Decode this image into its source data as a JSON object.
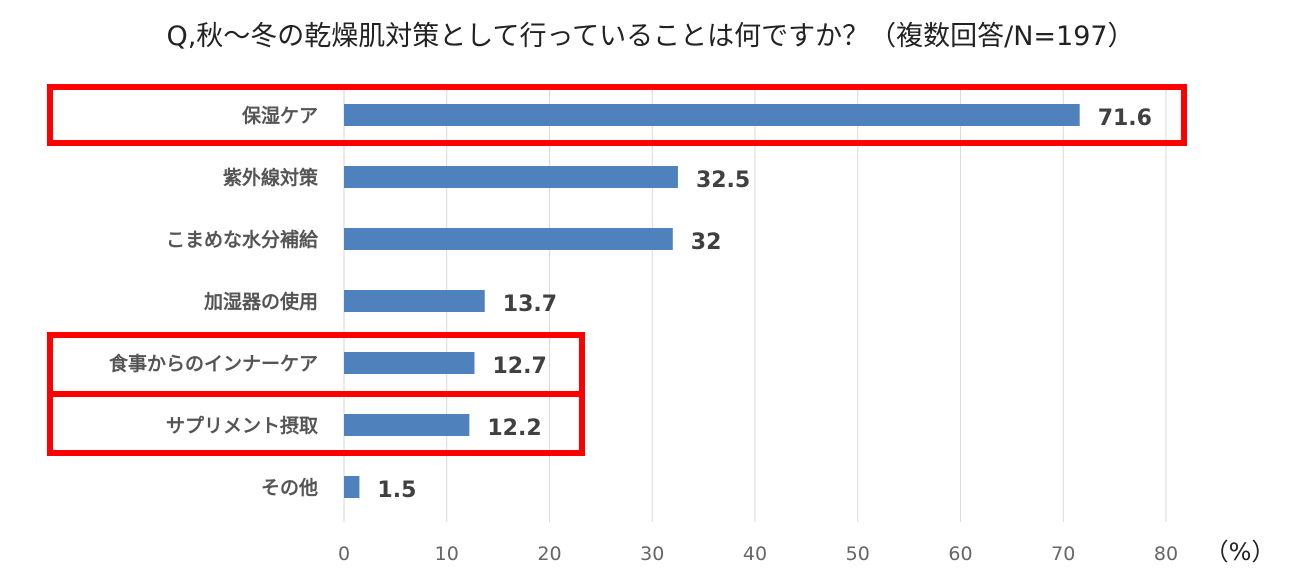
{
  "chart_data": {
    "type": "bar",
    "orientation": "horizontal",
    "title": "Q,秋～冬の乾燥肌対策として行っていることは何ですか？（複数回答/N=197）",
    "categories": [
      "保湿ケア",
      "紫外線対策",
      "こまめな水分補給",
      "加湿器の使用",
      "食事からのインナーケア",
      "サプリメント摂取",
      "その他"
    ],
    "values": [
      71.6,
      32.5,
      32,
      13.7,
      12.7,
      12.2,
      1.5
    ],
    "value_labels": [
      "71.6",
      "32.5",
      "32",
      "13.7",
      "12.7",
      "12.2",
      "1.5"
    ],
    "xlim": [
      0,
      80
    ],
    "xticks": [
      "0",
      "10",
      "20",
      "30",
      "40",
      "50",
      "60",
      "70",
      "80"
    ],
    "unit_label": "（%）",
    "grid": true,
    "bar_color": "#4f81bd",
    "highlight_color": "#ff0000",
    "highlighted_groups": [
      [
        "保湿ケア"
      ],
      [
        "食事からのインナーケア",
        "サプリメント摂取"
      ]
    ]
  }
}
